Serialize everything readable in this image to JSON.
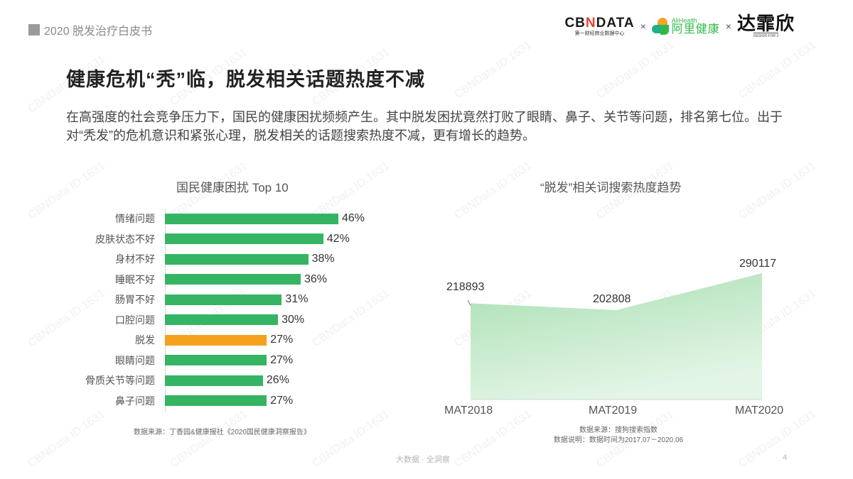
{
  "header": {
    "report_tag": "2020 脱发治疗白皮书",
    "logos": {
      "cbn_main_a": "CB",
      "cbn_main_x": "N",
      "cbn_main_b": "DATA",
      "cbn_sub": "第一财经商业数据中心",
      "times1": "×",
      "ali_en": "AliHealth",
      "ali_cn": "阿里健康",
      "times2": "×",
      "da_cn": "达霏欣",
      "da_sub": "DESIGN FOR 3"
    }
  },
  "page": {
    "title": "健康危机“秃”临，脱发相关话题热度不减",
    "intro": "在高强度的社会竞争压力下，国民的健康困扰频频产生。其中脱发困扰竟然打败了眼睛、鼻子、关节等问题，排名第七位。出于对“秃发”的危机意识和紧张心理，脱发相关的话题搜索热度不减，更有增长的趋势。"
  },
  "watermark": "CBNData ID:1631",
  "colors": {
    "bar_green": "#35b463",
    "bar_highlight": "#f5a11c",
    "area_top": "#a8dfb2",
    "area_bottom": "#e3f5e6"
  },
  "chart_data": [
    {
      "type": "bar",
      "orientation": "horizontal",
      "title": "国民健康困扰 Top 10",
      "categories": [
        "情绪问题",
        "皮肤状态不好",
        "身材不好",
        "睡眠不好",
        "肠胃不好",
        "口腔问题",
        "脱发",
        "眼睛问题",
        "骨质关节等问题",
        "鼻子问题"
      ],
      "values": [
        46,
        42,
        38,
        36,
        31,
        30,
        27,
        27,
        26,
        27
      ],
      "value_labels": [
        "46%",
        "42%",
        "38%",
        "36%",
        "31%",
        "30%",
        "27%",
        "27%",
        "26%",
        "27%"
      ],
      "highlight": "脱发",
      "unit": "%",
      "xlabel": "",
      "ylabel": "",
      "source": "数据来源：丁香园&健康报社《2020国民健康洞察报告》"
    },
    {
      "type": "area",
      "title": "“脱发”相关词搜索热度趋势",
      "categories": [
        "MAT2018",
        "MAT2019",
        "MAT2020"
      ],
      "values": [
        218893,
        202808,
        290117
      ],
      "value_labels": [
        "218893",
        "202808",
        "290117"
      ],
      "xlabel": "",
      "ylabel": "",
      "source": "数据来源：搜狗搜索指数",
      "note": "数据说明：数据时间为2017.07－2020.06"
    }
  ],
  "footer": {
    "tagline": "大数据 · 全洞察",
    "page_number": "4"
  }
}
